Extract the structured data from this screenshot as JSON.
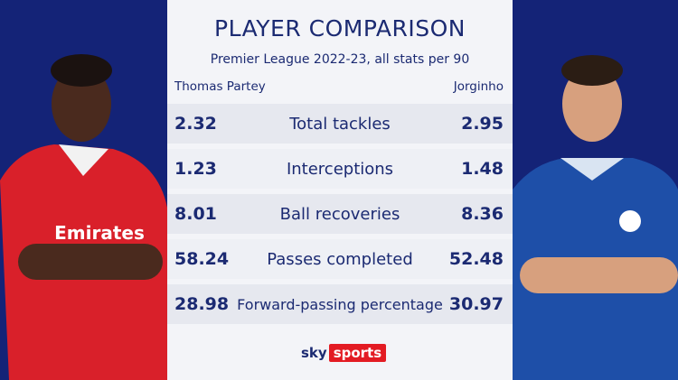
{
  "header": {
    "title": "PLAYER COMPARISON",
    "subtitle": "Premier League 2022-23, all stats per 90"
  },
  "players": {
    "left": "Thomas Partey",
    "right": "Jorginho"
  },
  "rows": [
    {
      "left": "2.32",
      "stat": "Total tackles",
      "right": "2.95"
    },
    {
      "left": "1.23",
      "stat": "Interceptions",
      "right": "1.48"
    },
    {
      "left": "8.01",
      "stat": "Ball recoveries",
      "right": "8.36"
    },
    {
      "left": "58.24",
      "stat": "Passes completed",
      "right": "52.48"
    },
    {
      "left": "28.98",
      "stat": "Forward-passing percentage",
      "right": "30.97"
    }
  ],
  "logo": {
    "sky": "sky",
    "sports": "sports"
  }
}
